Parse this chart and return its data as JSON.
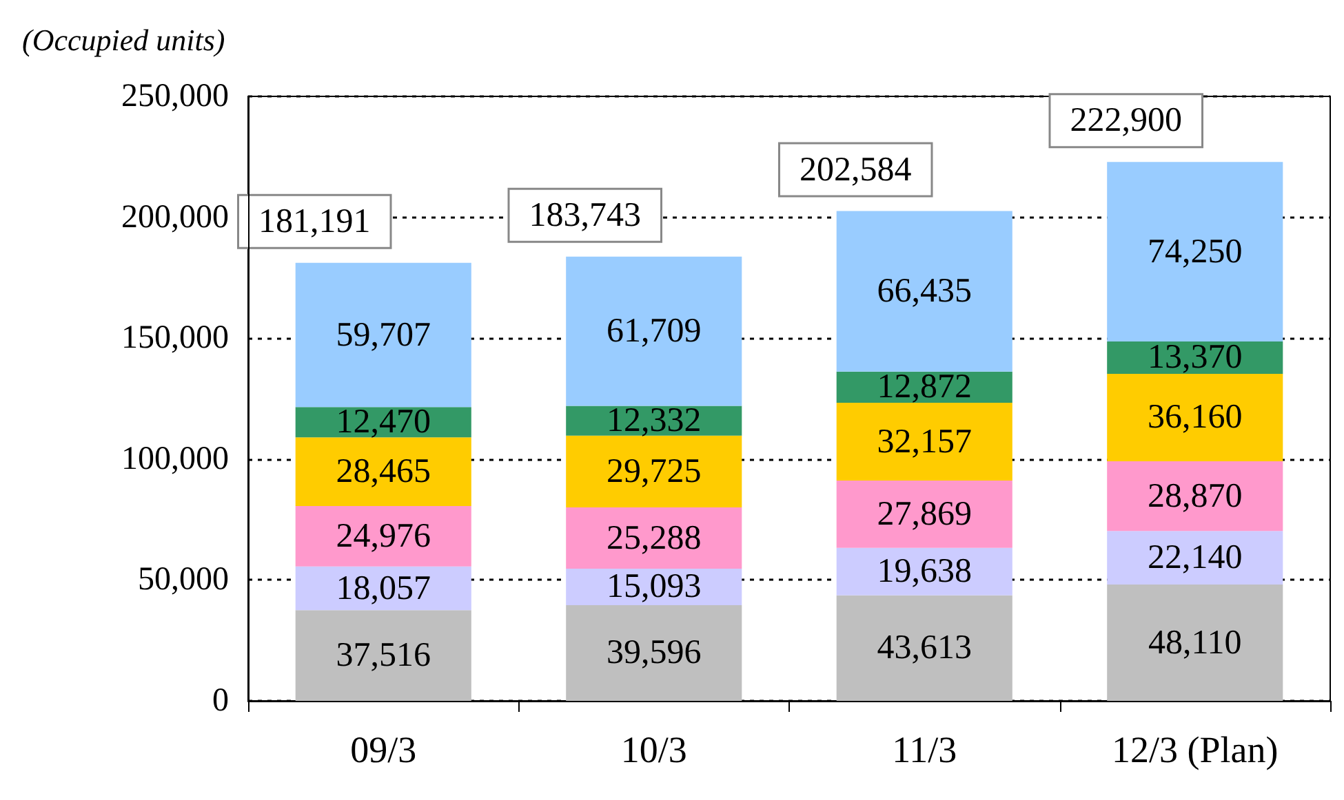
{
  "chart_data": {
    "type": "bar",
    "stacked": true,
    "ylabel": "(Occupied units)",
    "categories": [
      "09/3",
      "10/3",
      "11/3",
      "12/3 (Plan)"
    ],
    "series": [
      {
        "color": "#bfbfbf",
        "values": [
          37516,
          39596,
          43613,
          48110
        ],
        "value_labels": [
          "37,516",
          "39,596",
          "43,613",
          "48,110"
        ]
      },
      {
        "color": "#ccccff",
        "values": [
          18057,
          15093,
          19638,
          22140
        ],
        "value_labels": [
          "18,057",
          "15,093",
          "19,638",
          "22,140"
        ]
      },
      {
        "color": "#ff99cc",
        "values": [
          24976,
          25288,
          27869,
          28870
        ],
        "value_labels": [
          "24,976",
          "25,288",
          "27,869",
          "28,870"
        ]
      },
      {
        "color": "#ffcc00",
        "values": [
          28465,
          29725,
          32157,
          36160
        ],
        "value_labels": [
          "28,465",
          "29,725",
          "32,157",
          "36,160"
        ]
      },
      {
        "color": "#339966",
        "values": [
          12470,
          12332,
          12872,
          13370
        ],
        "value_labels": [
          "12,470",
          "12,332",
          "12,872",
          "13,370"
        ]
      },
      {
        "color": "#99ccff",
        "values": [
          59707,
          61709,
          66435,
          74250
        ],
        "value_labels": [
          "59,707",
          "61,709",
          "66,435",
          "74,250"
        ]
      }
    ],
    "totals": [
      "181,191",
      "183,743",
      "202,584",
      "222,900"
    ],
    "ylim": [
      0,
      250000
    ],
    "yticks": [
      {
        "value": 0,
        "label": "0"
      },
      {
        "value": 50000,
        "label": "50,000"
      },
      {
        "value": 100000,
        "label": "100,000"
      },
      {
        "value": 150000,
        "label": "150,000"
      },
      {
        "value": 200000,
        "label": "200,000"
      },
      {
        "value": 250000,
        "label": "250,000"
      }
    ],
    "grid": "y"
  }
}
